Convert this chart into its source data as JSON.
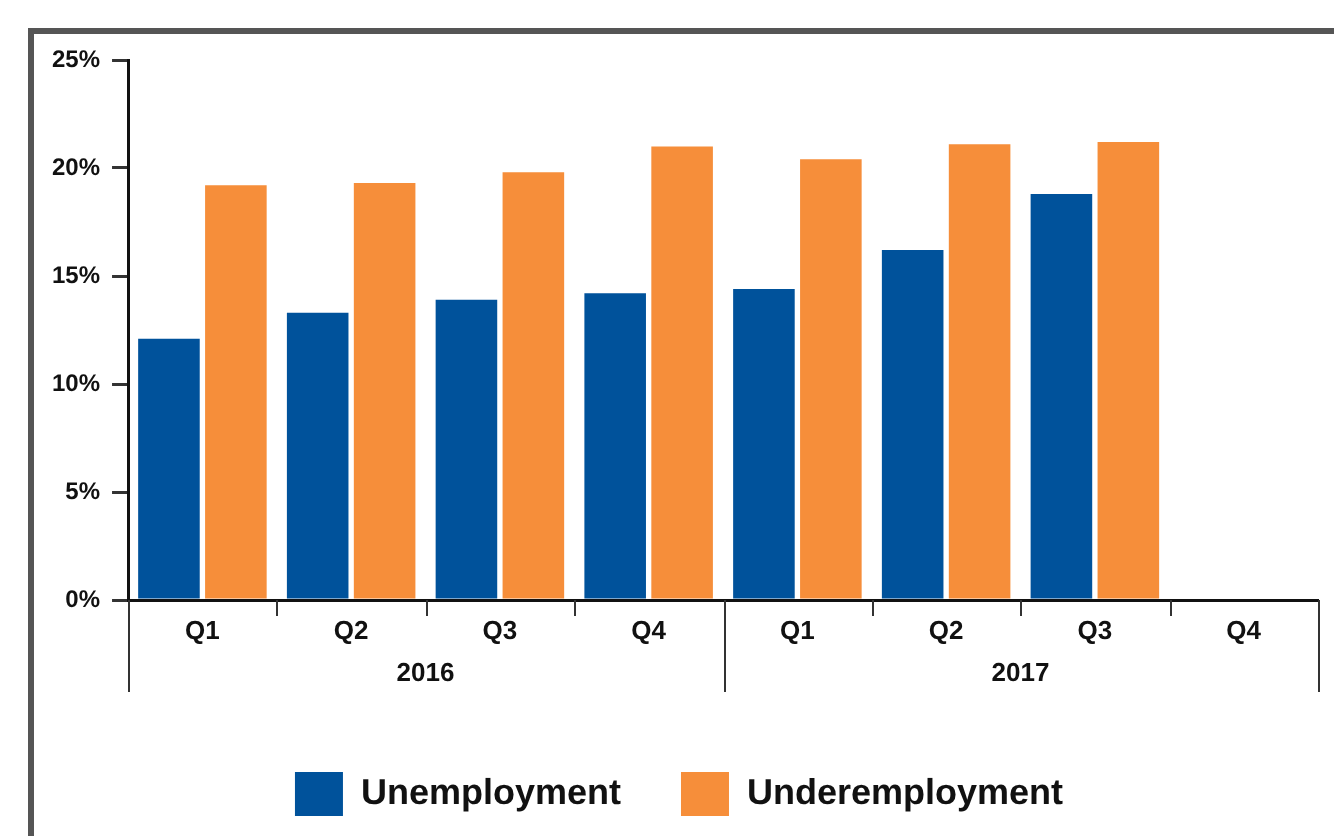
{
  "chart_data": {
    "type": "bar",
    "categories": [
      "Q1",
      "Q2",
      "Q3",
      "Q4",
      "Q1",
      "Q2",
      "Q3",
      "Q4"
    ],
    "series": [
      {
        "name": "Unemployment",
        "color": "#00529b",
        "values": [
          12.1,
          13.3,
          13.9,
          14.2,
          14.4,
          16.2,
          18.8,
          null
        ]
      },
      {
        "name": "Underemployment",
        "color": "#f68e3a",
        "values": [
          19.2,
          19.3,
          19.8,
          21.0,
          20.4,
          21.1,
          21.2,
          null
        ]
      }
    ],
    "ylim": [
      0,
      25
    ],
    "yticks": [
      {
        "value": 0,
        "label": "0%"
      },
      {
        "value": 5,
        "label": "5%"
      },
      {
        "value": 10,
        "label": "10%"
      },
      {
        "value": 15,
        "label": "15%"
      },
      {
        "value": 20,
        "label": "20%"
      },
      {
        "value": 25,
        "label": "25%"
      }
    ],
    "annotations": [
      "2016",
      "2017"
    ],
    "grid": false,
    "legend": "bottom"
  }
}
